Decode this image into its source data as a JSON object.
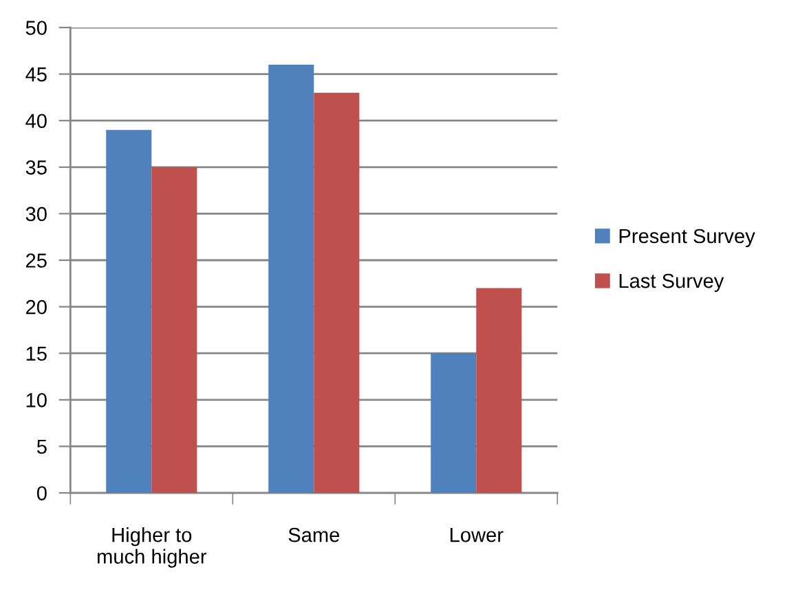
{
  "chart_data": {
    "type": "bar",
    "categories": [
      "Higher to\nmuch higher",
      "Same",
      "Lower"
    ],
    "series": [
      {
        "name": "Present Survey",
        "color": "#4f81bd",
        "values": [
          39,
          46,
          15
        ]
      },
      {
        "name": "Last Survey",
        "color": "#c0504d",
        "values": [
          35,
          43,
          22
        ]
      }
    ],
    "ylim": [
      0,
      50
    ],
    "yticks": [
      0,
      5,
      10,
      15,
      20,
      25,
      30,
      35,
      40,
      45,
      50
    ],
    "grid": "y",
    "legend": "right"
  }
}
